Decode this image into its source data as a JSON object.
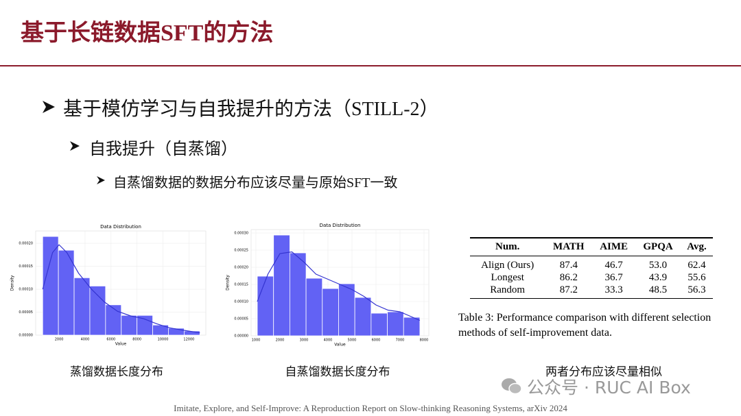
{
  "header": {
    "title": "基于长链数据SFT的方法"
  },
  "bullets": [
    {
      "level": 1,
      "text": "基于模仿学习与自我提升的方法（STILL-2）"
    },
    {
      "level": 2,
      "text": "自我提升（自蒸馏）"
    },
    {
      "level": 3,
      "text": "自蒸馏数据的数据分布应该尽量与原始SFT一致"
    }
  ],
  "chart_data": [
    {
      "type": "histogram",
      "title": "Data Distribution",
      "x_label": "Value",
      "y_label": "Density",
      "bins": [
        740,
        1950,
        3160,
        4370,
        5580,
        6790,
        8000,
        9210,
        10420,
        11630,
        12840
      ],
      "values": [
        0.000215,
        0.000185,
        0.000125,
        0.000107,
        6.6e-05,
        4.3e-05,
        4.3e-05,
        2.2e-05,
        1.5e-05,
        9e-06
      ],
      "color": "#6262f4",
      "kde_x": [
        740,
        1500,
        2000,
        2600,
        3500,
        4500,
        5500,
        6500,
        7500,
        8500,
        9500,
        10500,
        11500,
        12840
      ],
      "kde_values": [
        0.0001,
        0.00018,
        0.000197,
        0.00018,
        0.000135,
        0.0001,
        7.2e-05,
        5.2e-05,
        4.2e-05,
        3.6e-05,
        2.5e-05,
        1.6e-05,
        1.1e-05,
        5e-06
      ],
      "kde_color": "#3434d0",
      "xlim": [
        200,
        13300
      ],
      "xticks": [
        2000,
        4000,
        6000,
        8000,
        10000,
        12000
      ],
      "ylim": [
        0,
        0.000227
      ],
      "yticks": [
        {
          "value": 0,
          "label": "0.00000"
        },
        {
          "value": 5e-05,
          "label": "0.00005"
        },
        {
          "value": 0.0001,
          "label": "0.00010"
        },
        {
          "value": 0.00015,
          "label": "0.00015"
        },
        {
          "value": 0.0002,
          "label": "0.00020"
        }
      ],
      "grid": true,
      "caption": "蒸馏数据长度分布"
    },
    {
      "type": "histogram",
      "title": "Data Distribution",
      "x_label": "Value",
      "y_label": "Density",
      "bins": [
        1057,
        1734,
        2411,
        3088,
        3765,
        4442,
        5119,
        5796,
        6473,
        7150,
        7827
      ],
      "values": [
        0.000174,
        0.000294,
        0.000242,
        0.000168,
        0.000138,
        0.000152,
        0.000112,
        6.6e-05,
        7e-05,
        5.4e-05
      ],
      "color": "#6262f4",
      "kde_x": [
        1057,
        1500,
        2000,
        2500,
        3000,
        3500,
        4000,
        4500,
        5000,
        5500,
        6000,
        6500,
        7000,
        7827
      ],
      "kde_values": [
        0.0001,
        0.00018,
        0.00024,
        0.000245,
        0.000215,
        0.00018,
        0.000165,
        0.00015,
        0.000135,
        0.000115,
        9e-05,
        7.5e-05,
        7e-05,
        4.5e-05
      ],
      "kde_color": "#3434d0",
      "xlim": [
        800,
        8200
      ],
      "xticks": [
        1000,
        2000,
        3000,
        4000,
        5000,
        6000,
        7000,
        8000
      ],
      "ylim": [
        0,
        0.00031
      ],
      "yticks": [
        {
          "value": 0,
          "label": "0.00000"
        },
        {
          "value": 5e-05,
          "label": "0.00005"
        },
        {
          "value": 0.0001,
          "label": "0.00010"
        },
        {
          "value": 0.00015,
          "label": "0.00015"
        },
        {
          "value": 0.0002,
          "label": "0.00020"
        },
        {
          "value": 0.00025,
          "label": "0.00025"
        },
        {
          "value": 0.0003,
          "label": "0.00030"
        }
      ],
      "grid": true,
      "caption": "自蒸馏数据长度分布"
    }
  ],
  "table": {
    "header": [
      "Num.",
      "MATH",
      "AIME",
      "GPQA",
      "Avg."
    ],
    "rows": [
      [
        "Align (Ours)",
        "87.4",
        "46.7",
        "53.0",
        "62.4"
      ],
      [
        "Longest",
        "86.2",
        "36.7",
        "43.9",
        "55.6"
      ],
      [
        "Random",
        "87.2",
        "33.3",
        "48.5",
        "56.3"
      ]
    ],
    "caption": "Table 3: Performance comparison with different selection methods of self-improvement data.",
    "note": "两者分布应该尽量相似"
  },
  "watermark": "公众号 · RUC AI Box",
  "footer": "Imitate, Explore, and Self-Improve: A Reproduction Report on Slow-thinking Reasoning Systems, arXiv 2024"
}
